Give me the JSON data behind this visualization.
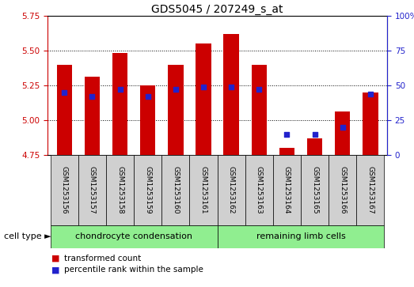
{
  "title": "GDS5045 / 207249_s_at",
  "samples": [
    "GSM1253156",
    "GSM1253157",
    "GSM1253158",
    "GSM1253159",
    "GSM1253160",
    "GSM1253161",
    "GSM1253162",
    "GSM1253163",
    "GSM1253164",
    "GSM1253165",
    "GSM1253166",
    "GSM1253167"
  ],
  "red_values": [
    5.4,
    5.31,
    5.48,
    5.25,
    5.4,
    5.55,
    5.62,
    5.4,
    4.8,
    4.87,
    5.06,
    5.2
  ],
  "blue_percentiles": [
    45,
    42,
    47,
    42,
    47,
    49,
    49,
    47,
    15,
    15,
    20,
    44
  ],
  "ylim_left": [
    4.75,
    5.75
  ],
  "ylim_right": [
    0,
    100
  ],
  "yticks_left": [
    4.75,
    5.0,
    5.25,
    5.5,
    5.75
  ],
  "yticks_right": [
    0,
    25,
    50,
    75,
    100
  ],
  "ytick_labels_right": [
    "0",
    "25",
    "50",
    "75",
    "100%"
  ],
  "red_color": "#cc0000",
  "blue_color": "#2222cc",
  "bar_bottom": 4.75,
  "group1_label": "chondrocyte condensation",
  "group2_label": "remaining limb cells",
  "group1_count": 6,
  "group2_count": 6,
  "cell_type_label": "cell type",
  "legend_red": "transformed count",
  "legend_blue": "percentile rank within the sample",
  "title_fontsize": 10,
  "tick_fontsize": 7.5,
  "label_fontsize": 6.5,
  "bar_width": 0.55
}
